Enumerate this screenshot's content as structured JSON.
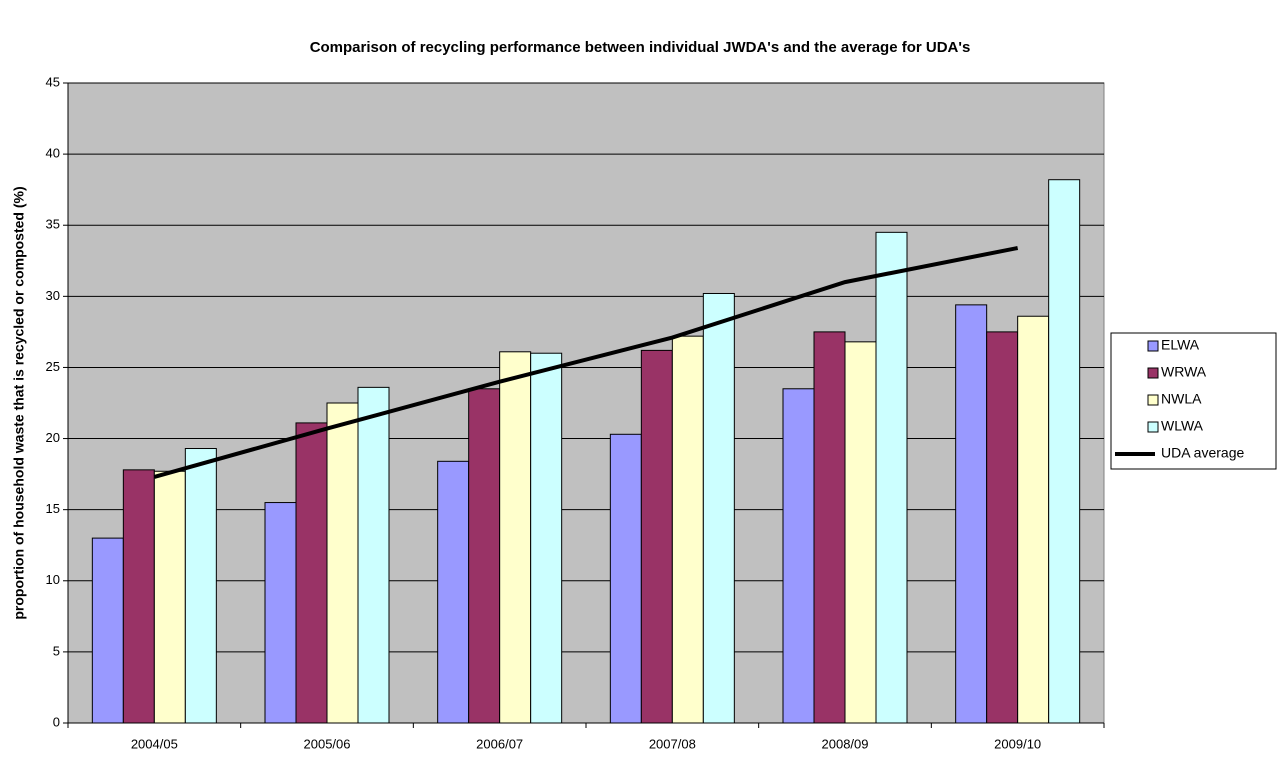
{
  "chart_data": {
    "type": "bar",
    "title": "Comparison of recycling performance between individual JWDA's and the average for UDA's",
    "y_label": "proportion of household waste that is recycled or composted (%)",
    "categories": [
      "2004/05",
      "2005/06",
      "2006/07",
      "2007/08",
      "2008/09",
      "2009/10"
    ],
    "series": [
      {
        "name": "ELWA",
        "color": "#9999ff",
        "values": [
          13.0,
          15.5,
          18.4,
          20.3,
          23.5,
          29.4
        ]
      },
      {
        "name": "WRWA",
        "color": "#993366",
        "values": [
          17.8,
          21.1,
          23.5,
          26.2,
          27.5,
          27.5
        ]
      },
      {
        "name": "NWLA",
        "color": "#ffffcc",
        "values": [
          17.7,
          22.5,
          26.1,
          27.2,
          26.8,
          28.6
        ]
      },
      {
        "name": "WLWA",
        "color": "#ccffff",
        "values": [
          19.3,
          23.6,
          26.0,
          30.2,
          34.5,
          38.2
        ]
      },
      {
        "name": "UDA average",
        "color": "#000000",
        "type": "line",
        "values": [
          17.3,
          20.7,
          24.0,
          27.1,
          31.0,
          33.4
        ]
      }
    ],
    "ylim": [
      0,
      45
    ],
    "yticks": [
      0,
      5,
      10,
      15,
      20,
      25,
      30,
      35,
      40,
      45
    ],
    "grid": true,
    "background": "#c0c0c0",
    "legend": "right"
  }
}
